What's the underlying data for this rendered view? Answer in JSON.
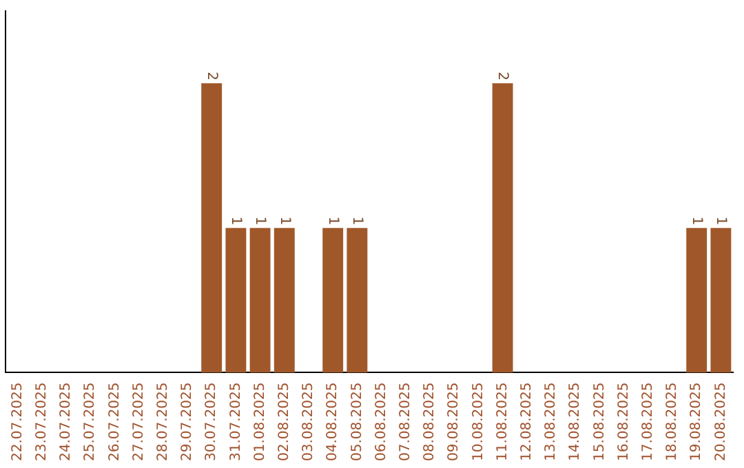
{
  "chart_data": {
    "type": "bar",
    "categories": [
      "22.07.2025",
      "23.07.2025",
      "24.07.2025",
      "25.07.2025",
      "26.07.2025",
      "27.07.2025",
      "28.07.2025",
      "29.07.2025",
      "30.07.2025",
      "31.07.2025",
      "01.08.2025",
      "02.08.2025",
      "03.08.2025",
      "04.08.2025",
      "05.08.2025",
      "06.08.2025",
      "07.08.2025",
      "08.08.2025",
      "09.08.2025",
      "10.08.2025",
      "11.08.2025",
      "12.08.2025",
      "13.08.2025",
      "14.08.2025",
      "15.08.2025",
      "16.08.2025",
      "17.08.2025",
      "18.08.2025",
      "19.08.2025",
      "20.08.2025"
    ],
    "values": [
      0,
      0,
      0,
      0,
      0,
      0,
      0,
      0,
      2,
      1,
      1,
      1,
      0,
      1,
      1,
      0,
      0,
      0,
      0,
      0,
      2,
      0,
      0,
      0,
      0,
      0,
      0,
      0,
      1,
      1
    ],
    "value_labels": [
      null,
      null,
      null,
      null,
      null,
      null,
      null,
      null,
      "2",
      "1",
      "1",
      "1",
      null,
      "1",
      "1",
      null,
      null,
      null,
      null,
      null,
      "2",
      null,
      null,
      null,
      null,
      null,
      null,
      null,
      "1",
      "1"
    ],
    "color": "#a0582a",
    "grid": false,
    "legend": false,
    "tick_labels": "x"
  }
}
